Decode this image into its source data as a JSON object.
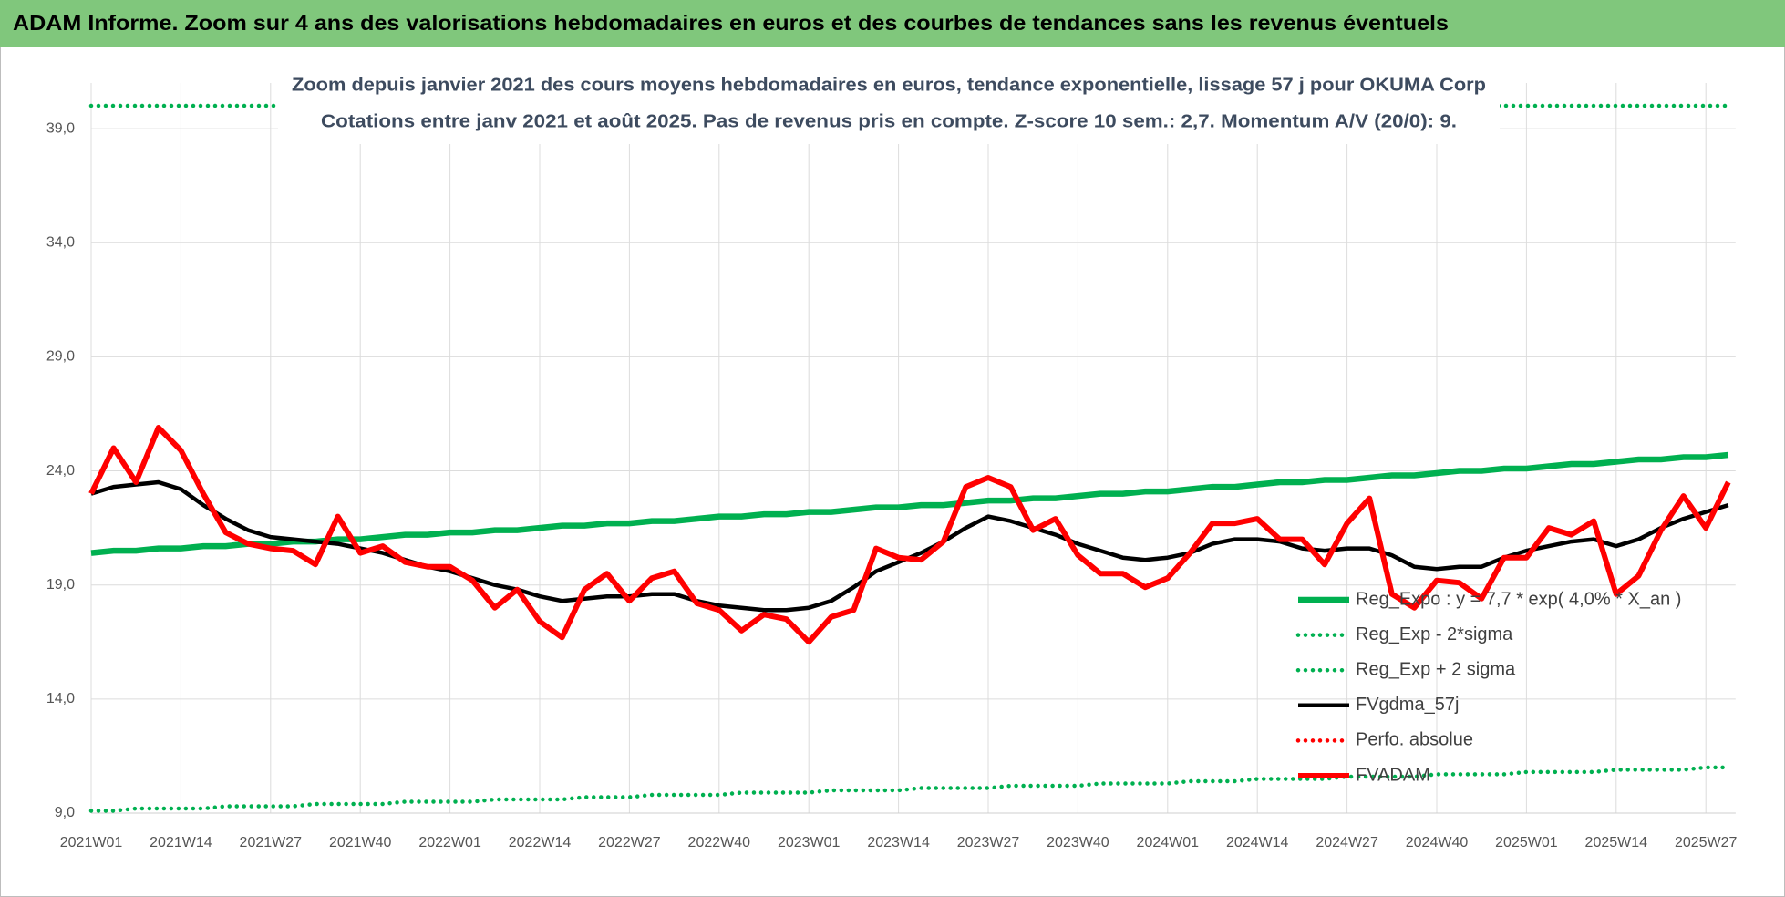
{
  "chart_data": {
    "type": "line",
    "title": "ADAM Informe. Zoom sur 4 ans des valorisations hebdomadaires en euros et des courbes de tendances sans les revenus éventuels",
    "subtitle": [
      "Zoom depuis janvier 2021 des cours moyens hebdomadaires en euros, tendance exponentielle, lissage 57 j pour OKUMA Corp",
      "Cotations entre janv 2021 et août 2025.  Pas de revenus pris en compte. Z-score 10 sem.: 2,7. Momentum A/V (20/0): 9."
    ],
    "categories": [
      "2021W01",
      null,
      null,
      null,
      "2021W14",
      null,
      null,
      null,
      "2021W27",
      null,
      null,
      null,
      "2021W40",
      null,
      null,
      null,
      "2022W01",
      null,
      null,
      null,
      "2022W14",
      null,
      null,
      null,
      "2022W27",
      null,
      null,
      null,
      "2022W40",
      null,
      null,
      null,
      "2023W01",
      null,
      null,
      null,
      "2023W14",
      null,
      null,
      null,
      "2023W27",
      null,
      null,
      null,
      "2023W40",
      null,
      null,
      null,
      "2024W01",
      null,
      null,
      null,
      "2024W14",
      null,
      null,
      null,
      "2024W27",
      null,
      null,
      null,
      "2024W40",
      null,
      null,
      null,
      "2025W01",
      null,
      null,
      null,
      "2025W14",
      null,
      null,
      null,
      "2025W27",
      null
    ],
    "ylim": [
      9,
      41
    ],
    "yticks": [
      {
        "value": 9,
        "label": "9,0"
      },
      {
        "value": 14,
        "label": "14,0"
      },
      {
        "value": 19,
        "label": "19,0"
      },
      {
        "value": 24,
        "label": "24,0"
      },
      {
        "value": 29,
        "label": "29,0"
      },
      {
        "value": 34,
        "label": "34,0"
      },
      {
        "value": 39,
        "label": "39,0"
      }
    ],
    "grid": true,
    "legend": "lower right",
    "series": [
      {
        "name": "Reg_Expo : y = 7,7 * exp( 4,0% * X_an )",
        "color": "#00b050",
        "style": "solid",
        "values": [
          20.4,
          20.5,
          20.5,
          20.6,
          20.6,
          20.7,
          20.7,
          20.8,
          20.8,
          20.9,
          20.9,
          21.0,
          21.0,
          21.1,
          21.2,
          21.2,
          21.3,
          21.3,
          21.4,
          21.4,
          21.5,
          21.6,
          21.6,
          21.7,
          21.7,
          21.8,
          21.8,
          21.9,
          22.0,
          22.0,
          22.1,
          22.1,
          22.2,
          22.2,
          22.3,
          22.4,
          22.4,
          22.5,
          22.5,
          22.6,
          22.7,
          22.7,
          22.8,
          22.8,
          22.9,
          23.0,
          23.0,
          23.1,
          23.1,
          23.2,
          23.3,
          23.3,
          23.4,
          23.5,
          23.5,
          23.6,
          23.6,
          23.7,
          23.8,
          23.8,
          23.9,
          24.0,
          24.0,
          24.1,
          24.1,
          24.2,
          24.3,
          24.3,
          24.4,
          24.5,
          24.5,
          24.6,
          24.6,
          24.7
        ]
      },
      {
        "name": "Reg_Exp - 2*sigma",
        "color": "#00b050",
        "style": "dotted",
        "values": [
          9.1,
          9.1,
          9.2,
          9.2,
          9.2,
          9.2,
          9.3,
          9.3,
          9.3,
          9.3,
          9.4,
          9.4,
          9.4,
          9.4,
          9.5,
          9.5,
          9.5,
          9.5,
          9.6,
          9.6,
          9.6,
          9.6,
          9.7,
          9.7,
          9.7,
          9.8,
          9.8,
          9.8,
          9.8,
          9.9,
          9.9,
          9.9,
          9.9,
          10.0,
          10.0,
          10.0,
          10.0,
          10.1,
          10.1,
          10.1,
          10.1,
          10.2,
          10.2,
          10.2,
          10.2,
          10.3,
          10.3,
          10.3,
          10.3,
          10.4,
          10.4,
          10.4,
          10.5,
          10.5,
          10.5,
          10.5,
          10.6,
          10.6,
          10.6,
          10.6,
          10.7,
          10.7,
          10.7,
          10.7,
          10.8,
          10.8,
          10.8,
          10.8,
          10.9,
          10.9,
          10.9,
          10.9,
          11.0,
          11.0
        ]
      },
      {
        "name": "Reg_Exp + 2 sigma",
        "color": "#00b050",
        "style": "dotted",
        "values": [
          40,
          40,
          40,
          40,
          40,
          40,
          40,
          40,
          40,
          40,
          40,
          40,
          40,
          40,
          40,
          40,
          40,
          40,
          40,
          40,
          40,
          40,
          40,
          40,
          40,
          40,
          40,
          40,
          40,
          40,
          40,
          40,
          40,
          40,
          40,
          40,
          40,
          40,
          40,
          40,
          40,
          40,
          40,
          40,
          40,
          40,
          40,
          40,
          40,
          40,
          40,
          40,
          40,
          40,
          40,
          40,
          40,
          40,
          40,
          40,
          40,
          40,
          40,
          40,
          40,
          40,
          40,
          40,
          40,
          40,
          40,
          40,
          40,
          40
        ]
      },
      {
        "name": "FVgdma_57j",
        "color": "#000000",
        "style": "solid",
        "values": [
          23.0,
          23.3,
          23.4,
          23.5,
          23.2,
          22.5,
          21.9,
          21.4,
          21.1,
          21.0,
          20.9,
          20.8,
          20.6,
          20.4,
          20.1,
          19.8,
          19.6,
          19.3,
          19.0,
          18.8,
          18.5,
          18.3,
          18.4,
          18.5,
          18.5,
          18.6,
          18.6,
          18.3,
          18.1,
          18.0,
          17.9,
          17.9,
          18.0,
          18.3,
          18.9,
          19.6,
          20.0,
          20.4,
          20.9,
          21.5,
          22.0,
          21.8,
          21.5,
          21.2,
          20.8,
          20.5,
          20.2,
          20.1,
          20.2,
          20.4,
          20.8,
          21.0,
          21.0,
          20.9,
          20.6,
          20.5,
          20.6,
          20.6,
          20.3,
          19.8,
          19.7,
          19.8,
          19.8,
          20.2,
          20.5,
          20.7,
          20.9,
          21.0,
          20.7,
          21.0,
          21.5,
          21.9,
          22.2,
          22.5
        ]
      },
      {
        "name": "Perfo. absolue",
        "color": "#ff0000",
        "style": "dotted",
        "values": [
          null,
          null,
          null,
          null,
          null,
          null,
          null,
          null,
          null,
          null,
          null,
          null,
          null,
          null,
          null,
          null,
          null,
          null,
          null,
          null,
          null,
          null,
          null,
          null,
          null,
          null,
          null,
          null,
          null,
          null,
          null,
          null,
          null,
          null,
          null,
          null,
          null,
          null,
          null,
          null,
          null,
          null,
          null,
          null,
          null,
          null,
          null,
          null,
          null,
          null,
          null,
          null,
          null,
          null,
          null,
          null,
          null,
          null,
          null,
          null,
          null,
          null,
          null,
          null,
          null,
          null,
          null,
          null,
          null,
          null,
          null,
          null,
          null,
          null
        ]
      },
      {
        "name": "FVADAM",
        "color": "#ff0000",
        "style": "thick",
        "values": [
          23.0,
          25.0,
          23.5,
          25.9,
          24.9,
          23.0,
          21.3,
          20.8,
          20.6,
          20.5,
          19.9,
          22.0,
          20.4,
          20.7,
          20.0,
          19.8,
          19.8,
          19.2,
          18.0,
          18.8,
          17.4,
          16.7,
          18.8,
          19.5,
          18.3,
          19.3,
          19.6,
          18.2,
          17.9,
          17.0,
          17.7,
          17.5,
          16.5,
          17.6,
          17.9,
          20.6,
          20.2,
          20.1,
          20.9,
          23.3,
          23.7,
          23.3,
          21.4,
          21.9,
          20.3,
          19.5,
          19.5,
          18.9,
          19.3,
          20.4,
          21.7,
          21.7,
          21.9,
          21.0,
          21.0,
          19.9,
          21.7,
          22.8,
          18.6,
          18.0,
          19.2,
          19.1,
          18.4,
          20.2,
          20.2,
          21.5,
          21.2,
          21.8,
          18.6,
          19.4,
          21.4,
          22.9,
          21.5,
          23.5
        ]
      }
    ]
  }
}
